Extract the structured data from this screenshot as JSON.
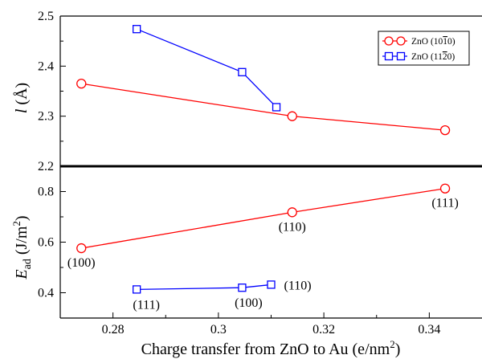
{
  "chart_data": [
    {
      "type": "line",
      "panel": "top",
      "ylabel_var": "l",
      "ylabel_unit": "(Å)",
      "xlim": [
        0.27,
        0.35
      ],
      "ylim": [
        2.2,
        2.5
      ],
      "yticks": [
        2.2,
        2.3,
        2.4,
        2.5
      ],
      "ytick_labels": [
        "2.2",
        "2.3",
        "2.4",
        "2.5"
      ],
      "legend_position": "top-right",
      "series": [
        {
          "name": "ZnO (10‾1‾0)",
          "name_main": "ZnO (10",
          "name_bar": "1",
          "name_tail": "0)",
          "color": "#ff0000",
          "marker": "circle",
          "x": [
            0.274,
            0.314,
            0.343
          ],
          "y": [
            2.365,
            2.3,
            2.272
          ]
        },
        {
          "name": "ZnO (11‾2‾0)",
          "name_main": "ZnO (11",
          "name_bar": "2",
          "name_tail": "0)",
          "color": "#0000ff",
          "marker": "square",
          "x": [
            0.2845,
            0.3045,
            0.311
          ],
          "y": [
            2.474,
            2.388,
            2.318
          ]
        }
      ]
    },
    {
      "type": "line",
      "panel": "bottom",
      "ylabel_main": "E",
      "ylabel_sub": "ad",
      "ylabel_unit": "(J/m",
      "ylabel_sup": "2",
      "ylabel_close": ")",
      "xlabel": "Charge transfer from ZnO to Au (e/nm",
      "xlabel_sup": "2",
      "xlabel_close": ")",
      "xlim": [
        0.27,
        0.35
      ],
      "ylim": [
        0.3,
        0.9
      ],
      "xticks": [
        0.28,
        0.3,
        0.32,
        0.34
      ],
      "xtick_labels": [
        "0.28",
        "0.3",
        "0.32",
        "0.34"
      ],
      "yticks": [
        0.4,
        0.6,
        0.8
      ],
      "ytick_labels": [
        "0.4",
        "0.6",
        "0.8"
      ],
      "series": [
        {
          "color": "#ff0000",
          "marker": "circle",
          "x": [
            0.274,
            0.314,
            0.343
          ],
          "y": [
            0.576,
            0.718,
            0.812
          ],
          "labels": [
            "(100)",
            "(110)",
            "(111)"
          ]
        },
        {
          "color": "#0000ff",
          "marker": "square",
          "x": [
            0.2845,
            0.3045,
            0.31
          ],
          "y": [
            0.413,
            0.42,
            0.432
          ],
          "labels": [
            "(111)",
            "(100)",
            "(110)"
          ]
        }
      ]
    }
  ]
}
